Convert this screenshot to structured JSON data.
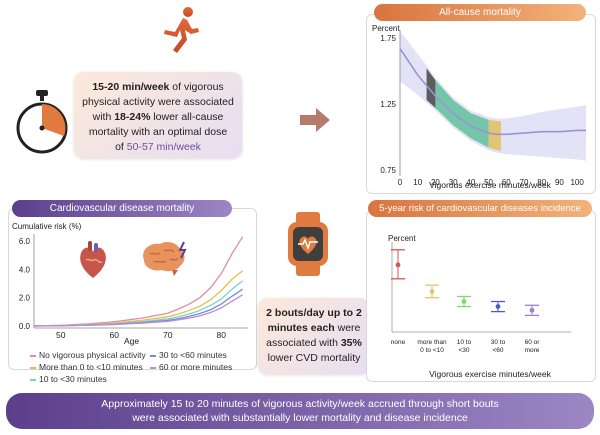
{
  "top_box": {
    "line1": "15-20 min/week",
    "line1_rest": " of vigorous",
    "line2": "physical activity were associated",
    "line3a": "with ",
    "line3_bold": "18-24%",
    "line3b": " lower all-cause",
    "line4": "mortality with an optimal dose",
    "line5a": "of ",
    "line5_accent": "50-57 min/week"
  },
  "all_cause": {
    "title": "All-cause mortality",
    "ylabel": "Percent",
    "xlabel": "Vigorous exercise minutes/week",
    "yticks": [
      "1.75",
      "1.25",
      "0.75"
    ],
    "xticks": [
      "0",
      "10",
      "20",
      "30",
      "40",
      "50",
      "60",
      "70",
      "80",
      "90",
      "100"
    ]
  },
  "cvd": {
    "title": "Cardiovascular disease mortality",
    "ylabel": "Cumulative risk (%)",
    "xlabel": "Age",
    "yticks": [
      "6.0",
      "4.0",
      "2.0",
      "0.0"
    ],
    "xticks": [
      "50",
      "60",
      "70",
      "80"
    ],
    "legend": [
      {
        "label": "No vigorous physical activity",
        "color": "#e88aa0"
      },
      {
        "label": "30 to <60 minutes",
        "color": "#6f8fd6"
      },
      {
        "label": "More than 0 to <10 minutes",
        "color": "#e3c04c"
      },
      {
        "label": "60 or more minutes",
        "color": "#c08ad6"
      },
      {
        "label": "10 to <30 minutes",
        "color": "#7ad4c4"
      }
    ]
  },
  "bouts_box": {
    "line1": "2 bouts/day up to 2",
    "line2": "minutes each",
    "line2b": " were",
    "line3": "associated with ",
    "line3_bold": "35%",
    "line4": "lower CVD mortality"
  },
  "risk5": {
    "title": "5-year risk of cardiovascular diseases incidence",
    "ylabel": "Percent",
    "xlabel": "Vigorous exercise minutes/week",
    "categories": [
      {
        "label1": "none",
        "label2": ""
      },
      {
        "label1": "more than",
        "label2": "0 to <10"
      },
      {
        "label1": "10 to",
        "label2": "<30"
      },
      {
        "label1": "30 to",
        "label2": "<60"
      },
      {
        "label1": "60 or",
        "label2": "more"
      }
    ]
  },
  "chart_data": [
    {
      "type": "line",
      "title": "All-cause mortality",
      "xlabel": "Vigorous exercise minutes/week",
      "ylabel": "Percent",
      "xlim": [
        0,
        105
      ],
      "ylim": [
        0.75,
        1.75
      ],
      "x": [
        0,
        10,
        20,
        30,
        40,
        50,
        55,
        60,
        70,
        80,
        90,
        100,
        105
      ],
      "values": [
        1.67,
        1.47,
        1.31,
        1.18,
        1.08,
        1.03,
        1.02,
        1.02,
        1.03,
        1.04,
        1.04,
        1.05,
        1.05
      ],
      "ci_upper": [
        1.8,
        1.63,
        1.45,
        1.3,
        1.2,
        1.15,
        1.14,
        1.14,
        1.16,
        1.19,
        1.21,
        1.23,
        1.24
      ],
      "ci_lower": [
        1.42,
        1.32,
        1.2,
        1.07,
        0.97,
        0.9,
        0.88,
        0.87,
        0.86,
        0.85,
        0.84,
        0.83,
        0.82
      ],
      "highlight_bands": [
        {
          "from": 15,
          "to": 20,
          "color": "#555555"
        },
        {
          "from": 20,
          "to": 50,
          "color": "#6fc3a6"
        },
        {
          "from": 50,
          "to": 57,
          "color": "#e2c36c"
        }
      ],
      "colors": {
        "line": "#9a94d0",
        "ci": "#e4e2f7"
      }
    },
    {
      "type": "line",
      "title": "Cardiovascular disease mortality",
      "xlabel": "Age",
      "ylabel": "Cumulative risk (%)",
      "xlim": [
        45,
        85
      ],
      "ylim": [
        0,
        6.5
      ],
      "x": [
        45,
        50,
        55,
        60,
        65,
        70,
        72,
        74,
        76,
        78,
        80,
        82,
        84
      ],
      "series": [
        {
          "name": "No vigorous physical activity",
          "color": "#e88aa0",
          "values": [
            0,
            0.05,
            0.15,
            0.3,
            0.55,
            0.9,
            1.2,
            1.55,
            2.0,
            2.7,
            3.7,
            5.1,
            6.3
          ]
        },
        {
          "name": "More than 0 to <10 minutes",
          "color": "#e3c04c",
          "values": [
            0,
            0.04,
            0.1,
            0.2,
            0.4,
            0.65,
            0.85,
            1.1,
            1.4,
            1.85,
            2.5,
            3.3,
            3.9
          ]
        },
        {
          "name": "10 to <30 minutes",
          "color": "#7ad4c4",
          "values": [
            0,
            0.03,
            0.08,
            0.16,
            0.3,
            0.5,
            0.65,
            0.85,
            1.1,
            1.45,
            1.9,
            2.6,
            3.2
          ]
        },
        {
          "name": "30 to <60 minutes",
          "color": "#6f8fd6",
          "values": [
            0,
            0.02,
            0.06,
            0.12,
            0.24,
            0.4,
            0.52,
            0.68,
            0.88,
            1.15,
            1.55,
            2.1,
            2.6
          ]
        },
        {
          "name": "60 or more minutes",
          "color": "#c08ad6",
          "values": [
            0,
            0.02,
            0.05,
            0.1,
            0.2,
            0.33,
            0.43,
            0.56,
            0.72,
            0.95,
            1.28,
            1.75,
            2.2
          ]
        }
      ]
    },
    {
      "type": "scatter",
      "title": "5-year risk of cardiovascular diseases incidence",
      "xlabel": "Vigorous exercise minutes/week",
      "ylabel": "Percent",
      "ylim": [
        2.5,
        9
      ],
      "categories": [
        "none",
        "more than 0 to <10",
        "10 to <30",
        "30 to <60",
        "60 or more"
      ],
      "values": [
        7.5,
        5.4,
        4.6,
        4.2,
        3.9
      ],
      "ci_lower": [
        6.4,
        4.9,
        4.2,
        3.8,
        3.5
      ],
      "ci_upper": [
        8.7,
        5.9,
        5.0,
        4.6,
        4.3
      ],
      "colors": [
        "#d9534f",
        "#e8c06a",
        "#7ed47a",
        "#4a5bc7",
        "#9b7fd0"
      ]
    }
  ],
  "bottom": {
    "line1": "Approximately 15 to 20 minutes of vigorous activity/week accrued through short bouts",
    "line2": "were associated with substantially lower mortality and disease incidence"
  },
  "colors": {
    "accent_purple": "#6a4fa0",
    "accent_orange": "#e07a3f"
  }
}
